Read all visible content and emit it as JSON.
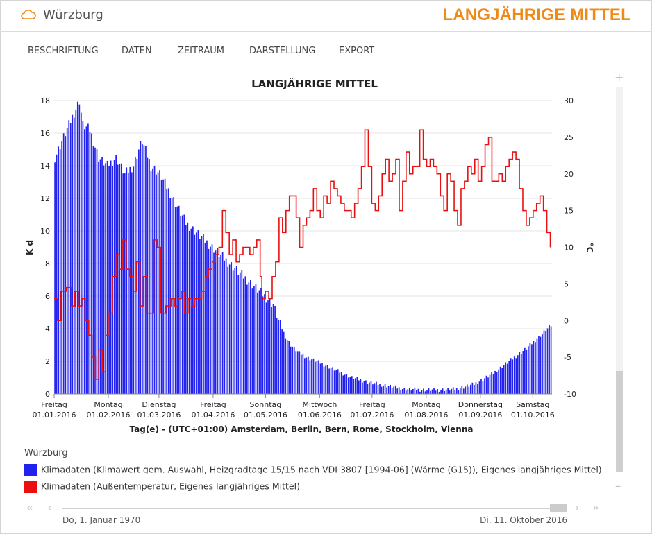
{
  "header": {
    "location": "Würzburg",
    "title": "LANGJÄHRIGE MITTEL",
    "accent": "#ef8a17"
  },
  "menu": [
    "BESCHRIFTUNG",
    "DATEN",
    "ZEITRAUM",
    "DARSTELLUNG",
    "EXPORT"
  ],
  "chart_data": {
    "type": "bar+line",
    "title": "LANGJÄHRIGE MITTEL",
    "xlabel": "Tag(e) - (UTC+01:00) Amsterdam, Berlin, Bern, Rome, Stockholm, Vienna",
    "ylabel_left": "K d",
    "ylabel_right": "°C",
    "ylim_left": [
      0,
      18
    ],
    "ylim_right": [
      -10,
      30
    ],
    "yticks_left": [
      0,
      2,
      4,
      6,
      8,
      10,
      12,
      14,
      16,
      18
    ],
    "yticks_right": [
      -10,
      -5,
      0,
      5,
      10,
      15,
      20,
      25,
      30
    ],
    "grid": true,
    "x_ticks": [
      {
        "day": "Freitag",
        "date": "01.01.2016",
        "doy": 0
      },
      {
        "day": "Montag",
        "date": "01.02.2016",
        "doy": 31
      },
      {
        "day": "Dienstag",
        "date": "01.03.2016",
        "doy": 60
      },
      {
        "day": "Freitag",
        "date": "01.04.2016",
        "doy": 91
      },
      {
        "day": "Sonntag",
        "date": "01.05.2016",
        "doy": 121
      },
      {
        "day": "Mittwoch",
        "date": "01.06.2016",
        "doy": 152
      },
      {
        "day": "Freitag",
        "date": "01.07.2016",
        "doy": 182
      },
      {
        "day": "Montag",
        "date": "01.08.2016",
        "doy": 213
      },
      {
        "day": "Donnerstag",
        "date": "01.09.2016",
        "doy": 244
      },
      {
        "day": "Samstag",
        "date": "01.10.2016",
        "doy": 274
      }
    ],
    "x_days": 285,
    "series": [
      {
        "name": "Klimadaten (Klimawert gem. Auswahl, Heizgradtage 15/15 nach VDI 3807 [1994-06] (Wärme (G15)), Eigenes langjähriges Mittel)",
        "type": "bar",
        "axis": "left",
        "color": "#2222ee",
        "points": [
          [
            0,
            14.5
          ],
          [
            4,
            15.5
          ],
          [
            8,
            16.5
          ],
          [
            12,
            17.5
          ],
          [
            14,
            18
          ],
          [
            16,
            16.5
          ],
          [
            20,
            16.2
          ],
          [
            25,
            14.5
          ],
          [
            30,
            14
          ],
          [
            35,
            14.5
          ],
          [
            40,
            13.5
          ],
          [
            45,
            14
          ],
          [
            48,
            15
          ],
          [
            50,
            15.5
          ],
          [
            55,
            14
          ],
          [
            60,
            13.5
          ],
          [
            65,
            12.5
          ],
          [
            70,
            11.5
          ],
          [
            75,
            10.5
          ],
          [
            80,
            10
          ],
          [
            85,
            9.5
          ],
          [
            90,
            9
          ],
          [
            95,
            8.5
          ],
          [
            100,
            8
          ],
          [
            105,
            7.5
          ],
          [
            110,
            7
          ],
          [
            115,
            6.5
          ],
          [
            120,
            6
          ],
          [
            125,
            5.5
          ],
          [
            128,
            4.5
          ],
          [
            132,
            3.5
          ],
          [
            135,
            3
          ],
          [
            140,
            2.5
          ],
          [
            145,
            2.2
          ],
          [
            150,
            2
          ],
          [
            160,
            1.5
          ],
          [
            170,
            1
          ],
          [
            180,
            0.7
          ],
          [
            190,
            0.5
          ],
          [
            200,
            0.3
          ],
          [
            210,
            0.25
          ],
          [
            220,
            0.25
          ],
          [
            230,
            0.3
          ],
          [
            240,
            0.6
          ],
          [
            250,
            1.2
          ],
          [
            260,
            2
          ],
          [
            270,
            2.8
          ],
          [
            275,
            3.3
          ],
          [
            280,
            3.8
          ],
          [
            284,
            4.2
          ]
        ]
      },
      {
        "name": "Klimadaten (Außentemperatur, Eigenes langjähriges Mittel)",
        "type": "line",
        "axis": "right",
        "color": "#e81010",
        "points": [
          [
            0,
            3
          ],
          [
            2,
            0
          ],
          [
            4,
            4
          ],
          [
            7,
            4.5
          ],
          [
            10,
            2
          ],
          [
            12,
            4
          ],
          [
            14,
            2
          ],
          [
            16,
            3
          ],
          [
            18,
            0
          ],
          [
            20,
            -2
          ],
          [
            22,
            -5
          ],
          [
            24,
            -8
          ],
          [
            26,
            -4
          ],
          [
            28,
            -7
          ],
          [
            30,
            -2
          ],
          [
            32,
            1
          ],
          [
            34,
            6
          ],
          [
            36,
            9
          ],
          [
            38,
            7
          ],
          [
            40,
            11
          ],
          [
            42,
            7
          ],
          [
            44,
            6
          ],
          [
            46,
            4
          ],
          [
            48,
            8
          ],
          [
            50,
            2
          ],
          [
            52,
            6
          ],
          [
            54,
            1
          ],
          [
            56,
            1
          ],
          [
            58,
            11
          ],
          [
            60,
            10
          ],
          [
            62,
            1
          ],
          [
            65,
            2
          ],
          [
            68,
            3
          ],
          [
            70,
            2
          ],
          [
            72,
            3
          ],
          [
            74,
            4
          ],
          [
            76,
            1
          ],
          [
            78,
            3
          ],
          [
            80,
            2
          ],
          [
            82,
            3
          ],
          [
            84,
            3
          ],
          [
            86,
            4
          ],
          [
            88,
            6
          ],
          [
            90,
            7
          ],
          [
            92,
            8
          ],
          [
            94,
            9
          ],
          [
            96,
            10
          ],
          [
            98,
            15
          ],
          [
            100,
            12
          ],
          [
            102,
            9
          ],
          [
            104,
            11
          ],
          [
            106,
            8
          ],
          [
            108,
            9
          ],
          [
            110,
            10
          ],
          [
            112,
            10
          ],
          [
            114,
            9
          ],
          [
            116,
            10
          ],
          [
            118,
            11
          ],
          [
            120,
            6
          ],
          [
            121,
            3
          ],
          [
            123,
            4
          ],
          [
            125,
            3
          ],
          [
            127,
            6
          ],
          [
            129,
            8
          ],
          [
            131,
            14
          ],
          [
            133,
            12
          ],
          [
            135,
            15
          ],
          [
            137,
            17
          ],
          [
            139,
            17
          ],
          [
            141,
            14
          ],
          [
            143,
            10
          ],
          [
            145,
            13
          ],
          [
            147,
            14
          ],
          [
            149,
            15
          ],
          [
            151,
            18
          ],
          [
            153,
            15
          ],
          [
            155,
            14
          ],
          [
            157,
            17
          ],
          [
            159,
            16
          ],
          [
            161,
            19
          ],
          [
            163,
            18
          ],
          [
            165,
            17
          ],
          [
            167,
            16
          ],
          [
            169,
            15
          ],
          [
            171,
            15
          ],
          [
            173,
            14
          ],
          [
            175,
            16
          ],
          [
            177,
            18
          ],
          [
            179,
            21
          ],
          [
            181,
            26
          ],
          [
            183,
            21
          ],
          [
            185,
            16
          ],
          [
            187,
            15
          ],
          [
            189,
            17
          ],
          [
            191,
            20
          ],
          [
            193,
            22
          ],
          [
            195,
            19
          ],
          [
            197,
            20
          ],
          [
            199,
            22
          ],
          [
            201,
            15
          ],
          [
            203,
            19
          ],
          [
            205,
            23
          ],
          [
            207,
            20
          ],
          [
            209,
            21
          ],
          [
            211,
            21
          ],
          [
            213,
            26
          ],
          [
            215,
            22
          ],
          [
            217,
            21
          ],
          [
            219,
            22
          ],
          [
            221,
            21
          ],
          [
            223,
            20
          ],
          [
            225,
            17
          ],
          [
            227,
            15
          ],
          [
            229,
            20
          ],
          [
            231,
            19
          ],
          [
            233,
            15
          ],
          [
            235,
            13
          ],
          [
            237,
            18
          ],
          [
            239,
            19
          ],
          [
            241,
            21
          ],
          [
            243,
            20
          ],
          [
            245,
            22
          ],
          [
            247,
            19
          ],
          [
            249,
            21
          ],
          [
            251,
            24
          ],
          [
            253,
            25
          ],
          [
            255,
            19
          ],
          [
            257,
            19
          ],
          [
            259,
            20
          ],
          [
            261,
            19
          ],
          [
            263,
            21
          ],
          [
            265,
            22
          ],
          [
            267,
            23
          ],
          [
            269,
            22
          ],
          [
            271,
            18
          ],
          [
            273,
            15
          ],
          [
            275,
            13
          ],
          [
            277,
            14
          ],
          [
            279,
            15
          ],
          [
            281,
            16
          ],
          [
            283,
            17
          ],
          [
            285,
            15
          ],
          [
            287,
            12
          ],
          [
            289,
            10
          ]
        ]
      }
    ]
  },
  "legend": {
    "title": "Würzburg",
    "items": [
      {
        "label": "Klimadaten (Klimawert gem. Auswahl, Heizgradtage 15/15 nach VDI 3807 [1994-06] (Wärme (G15)), Eigenes langjähriges Mittel)",
        "color": "#2222ee"
      },
      {
        "label": "Klimadaten (Außentemperatur, Eigenes langjähriges Mittel)",
        "color": "#e81010"
      }
    ]
  },
  "timeline": {
    "start": "Do, 1. Januar 1970",
    "end": "Di, 11. Oktober 2016"
  },
  "icons": {
    "cloud": "cloud-icon",
    "plus": "zoom-in-icon",
    "minus": "zoom-out-icon"
  }
}
